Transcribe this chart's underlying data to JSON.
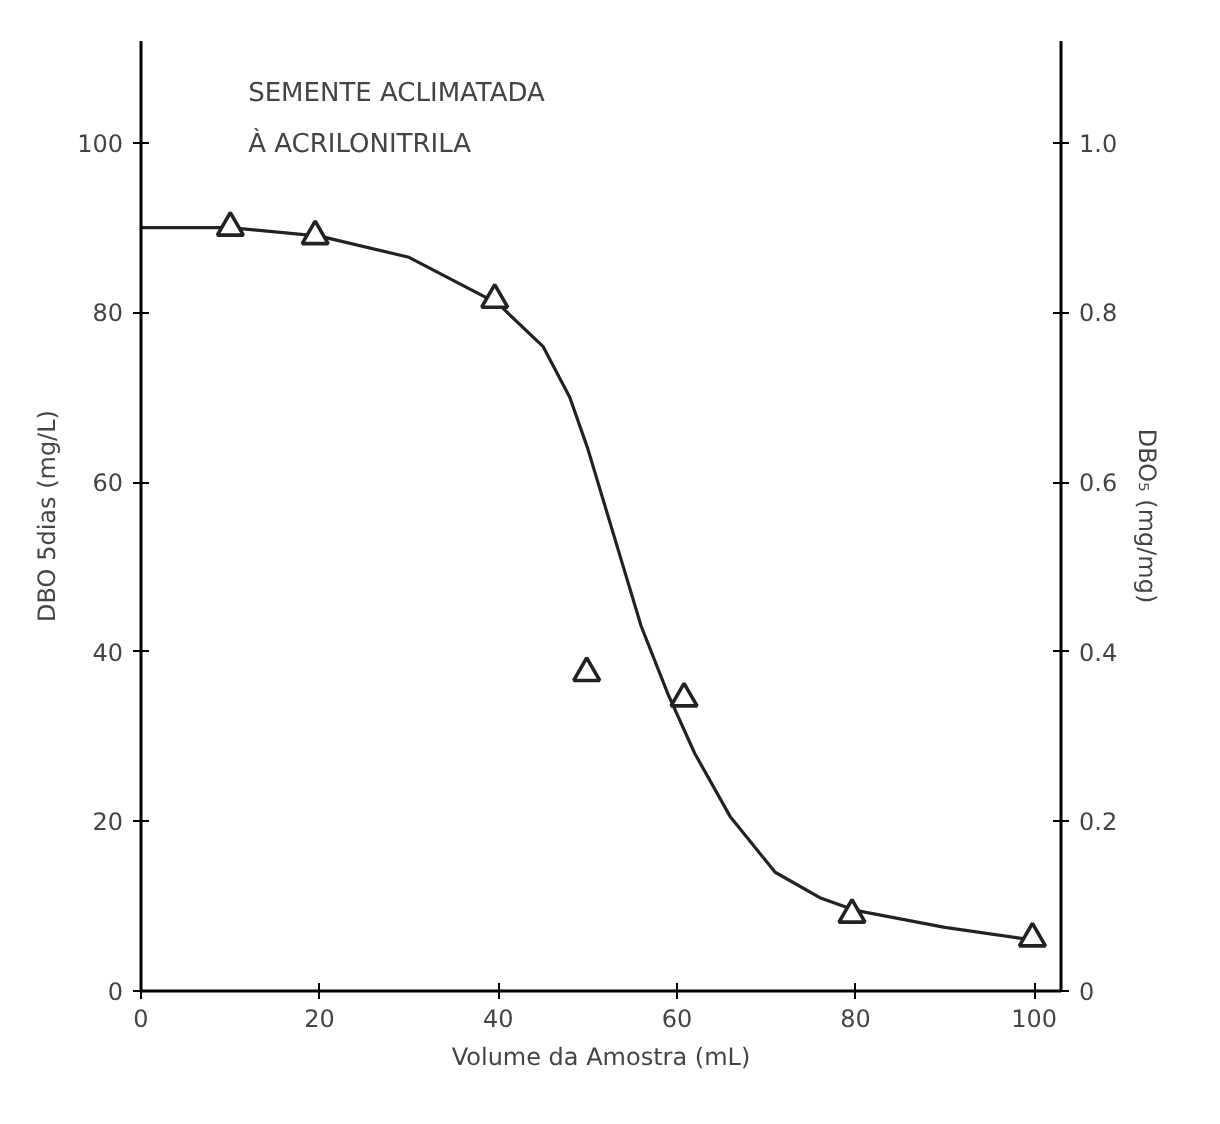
{
  "chart_data": {
    "type": "scatter",
    "title": "SEMENTE  ACLIMATADA\nÀ  ACRILONITRILA",
    "xlabel": "Volume da Amostra (mL)",
    "ylabel": "DBO 5dias (mg/L)",
    "y2label": "DBO₅ (mg/mg)",
    "xlim": [
      0,
      103
    ],
    "xticks": [
      0,
      20,
      40,
      60,
      80,
      100
    ],
    "ylim": [
      0,
      112
    ],
    "yticks": [
      0,
      20,
      40,
      60,
      80,
      100
    ],
    "y2lim": [
      0,
      1.12
    ],
    "y2ticks": [
      0,
      0.2,
      0.4,
      0.6,
      0.8,
      {
        "value": 1.0,
        "label": "1.0"
      }
    ],
    "grid": false,
    "series": [
      {
        "marker": "triangle",
        "color": "#222222",
        "x": [
          10,
          19.5,
          39.6,
          49.9,
          60.8,
          79.6,
          99.8
        ],
        "values": [
          90,
          89,
          81.5,
          37.5,
          34.5,
          9,
          6.2
        ]
      },
      {
        "type": "line",
        "marker": "none",
        "line_style": "solid",
        "color": "#222222",
        "x": [
          0,
          10,
          20,
          30,
          40,
          45,
          48,
          50,
          52,
          54,
          56,
          59,
          62,
          66,
          71,
          76,
          80,
          90,
          100
        ],
        "values": [
          90,
          90,
          89,
          86.5,
          81,
          76,
          70,
          64,
          57,
          50,
          43,
          35,
          28,
          20.5,
          14,
          11,
          9.5,
          7.5,
          6
        ]
      }
    ]
  }
}
